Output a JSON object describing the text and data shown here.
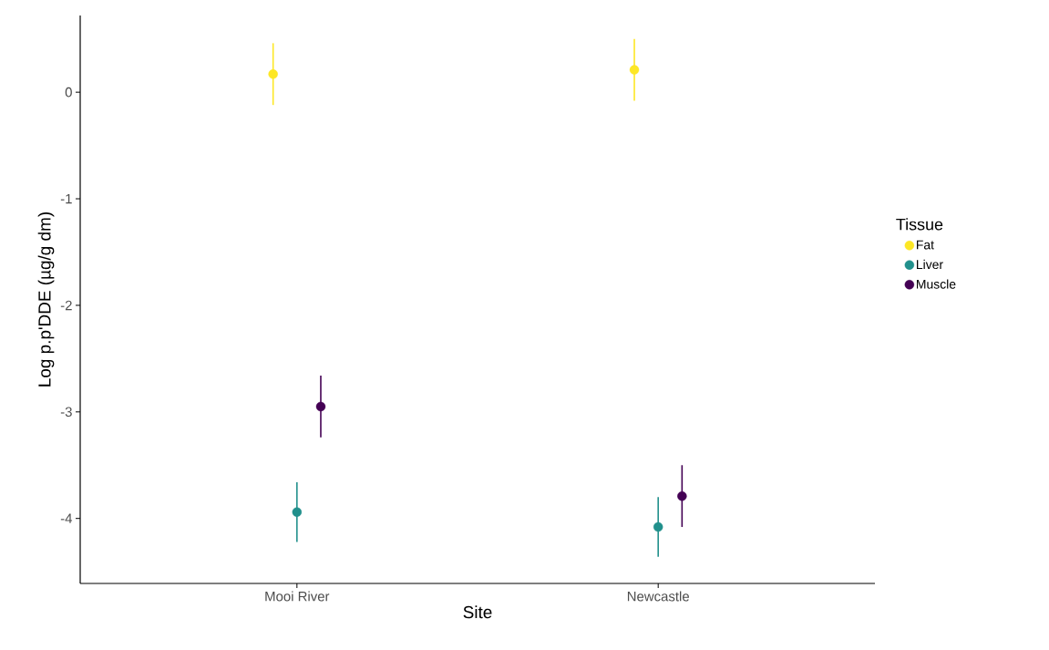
{
  "chart_data": {
    "type": "scatter",
    "xlabel": "Site",
    "ylabel": "Log p.p'DDE (µg/g dm)",
    "legend_title": "Tissue",
    "categories": [
      "Mooi River",
      "Newcastle"
    ],
    "series": [
      {
        "name": "Fat",
        "color": "#fde725",
        "x": [
          "Mooi River",
          "Newcastle"
        ],
        "values": [
          0.17,
          0.21
        ],
        "errors": [
          0.29,
          0.29
        ]
      },
      {
        "name": "Liver",
        "color": "#21908c",
        "x": [
          "Mooi River",
          "Newcastle"
        ],
        "values": [
          -3.94,
          -4.08
        ],
        "errors": [
          0.28,
          0.28
        ]
      },
      {
        "name": "Muscle",
        "color": "#440154",
        "x": [
          "Mooi River",
          "Newcastle"
        ],
        "values": [
          -2.95,
          -3.79
        ],
        "errors": [
          0.29,
          0.29
        ]
      }
    ],
    "ylim": [
      -4.61,
      0.72
    ],
    "yticks": [
      -4,
      -3,
      -2,
      -1,
      0
    ],
    "grid": false,
    "legend": "right",
    "marker": "circle"
  }
}
